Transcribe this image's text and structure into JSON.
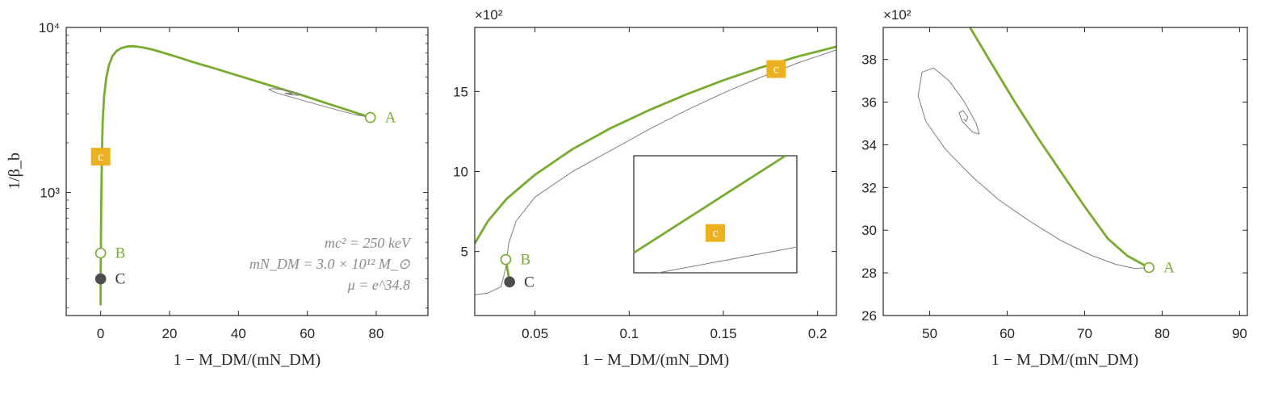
{
  "colors": {
    "green": "#77ac30",
    "gray": "#7f7f7f",
    "dark": "#4d4d4d",
    "orange": "#edb120",
    "axis": "#262626"
  },
  "chart_data": [
    {
      "type": "line",
      "panel": "left",
      "xlabel": "1 − M_DM/(mN_DM)",
      "ylabel": "1/β_b",
      "xlim": [
        -10,
        95
      ],
      "ylim": [
        180,
        10000
      ],
      "yscale": "log",
      "x_ticks": [
        "0",
        "20",
        "40",
        "60",
        "80"
      ],
      "x_tick_values": [
        0,
        20,
        40,
        60,
        80
      ],
      "y_ticks": [
        "10⁴",
        "10³"
      ],
      "y_tick_values": [
        10000,
        1000
      ],
      "annotations": [
        "mc² = 250 keV",
        "mN_DM = 3.0 × 10¹² M_⊙",
        "μ = e^34.8"
      ],
      "series": [
        {
          "style": "green-thick",
          "x": [
            0,
            0.0,
            0.05,
            0.15,
            0.35,
            0.6,
            1.0,
            1.6,
            2.4,
            3.4,
            4.6,
            6.0,
            7.5,
            9.0,
            10.5,
            12.5,
            15,
            18,
            22,
            27,
            33,
            40,
            47,
            54,
            60,
            66,
            71,
            75,
            78.3
          ],
          "y": [
            210,
            290,
            430,
            800,
            1650,
            2700,
            3800,
            4900,
            5900,
            6700,
            7200,
            7500,
            7650,
            7700,
            7650,
            7550,
            7350,
            7050,
            6650,
            6150,
            5650,
            5100,
            4600,
            4150,
            3800,
            3450,
            3200,
            3000,
            2850
          ]
        },
        {
          "style": "gray-thin",
          "x": [
            78.3,
            74,
            69,
            64,
            59,
            54,
            50.5,
            48.8,
            50,
            53,
            56,
            58.2,
            57,
            55,
            53.5,
            54,
            55.2,
            55.6,
            55.2,
            54.6
          ],
          "y": [
            2850,
            2960,
            3150,
            3370,
            3600,
            3850,
            4050,
            4220,
            4260,
            4180,
            4050,
            3920,
            3880,
            3920,
            3980,
            4010,
            3990,
            3960,
            3950,
            3965
          ]
        }
      ],
      "markers": [
        {
          "label": "A",
          "x": 78.3,
          "y": 2850,
          "kind": "open",
          "color": "green"
        },
        {
          "label": "B",
          "x": 0,
          "y": 430,
          "kind": "open",
          "color": "green"
        },
        {
          "label": "C",
          "x": 0,
          "y": 300,
          "kind": "filled",
          "color": "dark"
        },
        {
          "label": "c",
          "x": 0,
          "y": 1650,
          "kind": "square",
          "color": "orange"
        }
      ]
    },
    {
      "type": "line",
      "panel": "middle",
      "xlabel": "1 − M_DM/(mN_DM)",
      "multiplier": "×10²",
      "xlim": [
        0.018,
        0.21
      ],
      "ylim": [
        1.0,
        19.0
      ],
      "x_ticks": [
        "0.05",
        "0.1",
        "0.15",
        "0.2"
      ],
      "x_tick_values": [
        0.05,
        0.1,
        0.15,
        0.2
      ],
      "y_ticks": [
        "5",
        "10",
        "15"
      ],
      "y_tick_values": [
        5,
        10,
        15
      ],
      "series": [
        {
          "style": "green-thick",
          "x": [
            0.018,
            0.025,
            0.035,
            0.05,
            0.07,
            0.09,
            0.11,
            0.13,
            0.15,
            0.17,
            0.19,
            0.21
          ],
          "y": [
            5.5,
            6.9,
            8.3,
            9.8,
            11.4,
            12.7,
            13.8,
            14.8,
            15.7,
            16.5,
            17.2,
            17.8
          ]
        },
        {
          "style": "gray-thin",
          "x": [
            0.018,
            0.025,
            0.032,
            0.0345,
            0.036,
            0.04,
            0.05,
            0.07,
            0.09,
            0.11,
            0.13,
            0.15,
            0.17,
            0.19,
            0.21
          ],
          "y": [
            2.3,
            2.4,
            2.8,
            4.0,
            5.5,
            6.9,
            8.4,
            10.0,
            11.3,
            12.6,
            13.8,
            14.9,
            15.9,
            16.8,
            17.6
          ]
        },
        {
          "style": "green-thick",
          "x": [
            0.0345,
            0.0365
          ],
          "y": [
            4.5,
            3.1
          ]
        }
      ],
      "markers": [
        {
          "label": "B",
          "x": 0.0345,
          "y": 4.5,
          "kind": "open",
          "color": "green"
        },
        {
          "label": "C",
          "x": 0.0365,
          "y": 3.1,
          "kind": "filled",
          "color": "dark"
        },
        {
          "label": "c",
          "x": 0.178,
          "y": 16.4,
          "kind": "square",
          "color": "orange"
        }
      ],
      "inset": {
        "green_line": [
          [
            0,
            0.83
          ],
          [
            0.93,
            0.0
          ]
        ],
        "gray_line": [
          [
            0.15,
            1.0
          ],
          [
            1.0,
            0.78
          ]
        ],
        "marker": {
          "label": "c",
          "x": 0.5,
          "y": 0.66
        }
      }
    },
    {
      "type": "line",
      "panel": "right",
      "xlabel": "1 − M_DM/(mN_DM)",
      "multiplier": "×10²",
      "xlim": [
        44,
        91
      ],
      "ylim": [
        26,
        39.5
      ],
      "x_ticks": [
        "50",
        "60",
        "70",
        "80",
        "90"
      ],
      "x_tick_values": [
        50,
        60,
        70,
        80,
        90
      ],
      "y_ticks": [
        "26",
        "28",
        "30",
        "32",
        "34",
        "36",
        "38"
      ],
      "y_tick_values": [
        26,
        28,
        30,
        32,
        34,
        36,
        38
      ],
      "series": [
        {
          "style": "green-thick",
          "x": [
            55.2,
            58,
            61,
            64,
            67,
            70,
            73,
            75.5,
            77.5,
            78.3
          ],
          "y": [
            39.5,
            37.8,
            36.0,
            34.3,
            32.7,
            31.1,
            29.6,
            28.8,
            28.4,
            28.25
          ]
        },
        {
          "style": "gray-thin",
          "x": [
            78.3,
            76.5,
            74,
            71,
            67,
            63,
            59,
            55.5,
            52,
            49.5,
            48.5,
            49,
            50.5,
            52.5,
            54.5,
            56,
            56.4,
            55.5,
            54.2,
            53.8,
            54.3,
            54.9,
            54.7,
            54.4
          ],
          "y": [
            28.25,
            28.2,
            28.4,
            28.8,
            29.5,
            30.4,
            31.4,
            32.5,
            33.8,
            35.1,
            36.3,
            37.4,
            37.6,
            37.0,
            36.0,
            35.0,
            34.5,
            34.6,
            35.1,
            35.5,
            35.6,
            35.3,
            35.1,
            35.2
          ]
        }
      ],
      "markers": [
        {
          "label": "A",
          "x": 78.3,
          "y": 28.25,
          "kind": "open",
          "color": "green"
        }
      ]
    }
  ]
}
